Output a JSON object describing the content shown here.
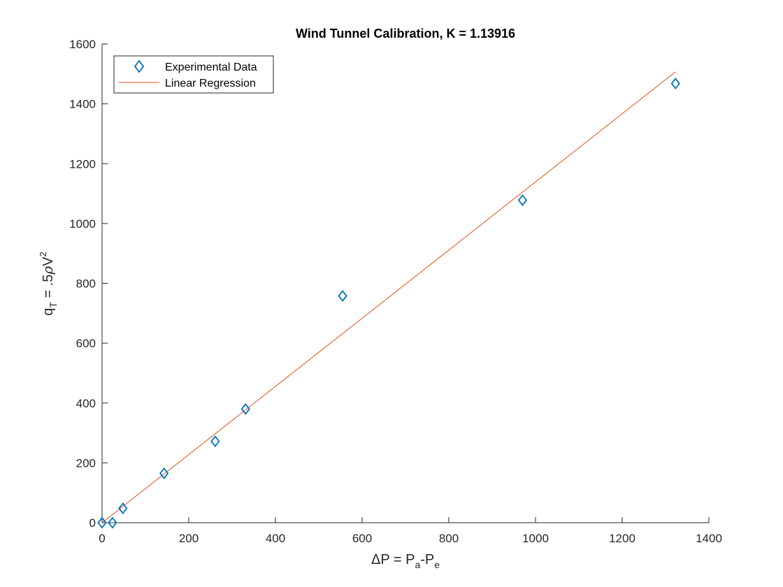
{
  "chart_data": {
    "type": "scatter",
    "title": "Wind Tunnel Calibration, K = 1.13916",
    "xlabel": {
      "base": "ΔP = P",
      "sub1": "a",
      "mid": "-P",
      "sub2": "e"
    },
    "ylabel": {
      "base": "q",
      "sub": "T",
      "mid": " = .5",
      "rho": "ρ",
      "v": "V",
      "sup": "2"
    },
    "xlim": [
      0,
      1400
    ],
    "ylim": [
      0,
      1600
    ],
    "xticks": [
      0,
      200,
      400,
      600,
      800,
      1000,
      1200,
      1400
    ],
    "yticks": [
      0,
      200,
      400,
      600,
      800,
      1000,
      1200,
      1400,
      1600
    ],
    "grid": false,
    "legend_position": "top-left",
    "series": [
      {
        "name": "Experimental Data",
        "kind": "markers",
        "marker": "diamond",
        "color": "#0072BD",
        "x": [
          0,
          24,
          48,
          143,
          261,
          331,
          555,
          970,
          1323
        ],
        "y": [
          0,
          0,
          48,
          165,
          272,
          380,
          758,
          1078,
          1468
        ]
      },
      {
        "name": "Linear Regression",
        "kind": "line",
        "color": "#D95319",
        "x": [
          0,
          1323
        ],
        "y": [
          0,
          1507.1
        ]
      }
    ]
  }
}
